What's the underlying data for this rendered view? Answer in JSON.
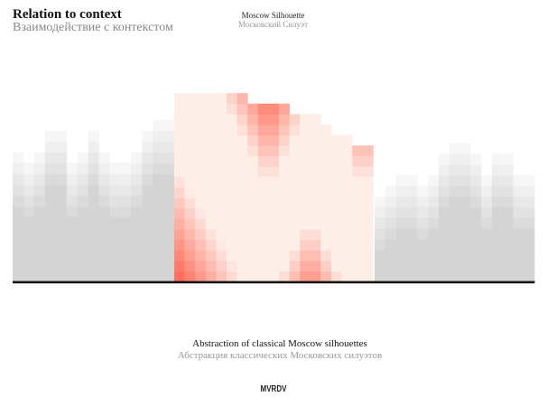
{
  "header": {
    "title": "Relation to context",
    "title_ru": "Взаимодействие с контекстом"
  },
  "subheader": {
    "title": "Moscow Silhouette",
    "title_ru": "Московский Силуэт"
  },
  "caption": {
    "text": "Abstraction of  classical Moscow silhouettes",
    "text_ru": "Абстракция классических Московских силуэтов"
  },
  "logo": "MVRDV",
  "colors": {
    "context_grey": "#d4d4d4",
    "accent_red": "#ff6f5c",
    "highlight_base": "#fdeee8",
    "baseline": "#111111"
  }
}
